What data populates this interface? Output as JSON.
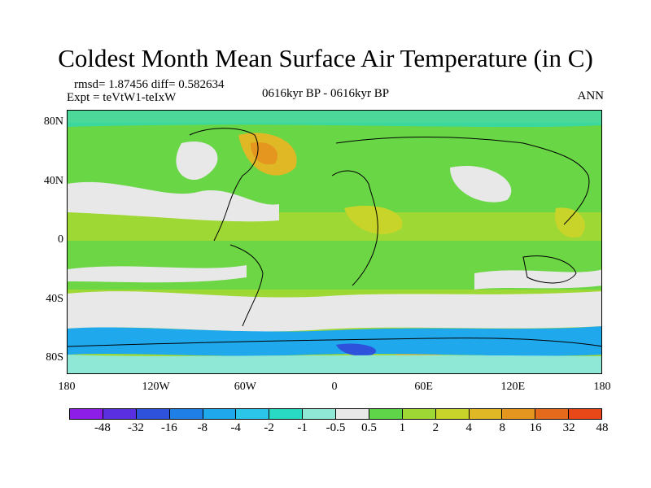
{
  "title": "Coldest Month Mean Surface Air Temperature (in C)",
  "stats": "rmsd= 1.87456 diff= 0.582634",
  "experiment": "Expt = teVtW1-teIxW",
  "period": "0616kyr BP - 0616kyr BP",
  "season": "ANN",
  "lat_labels": [
    "80N",
    "40N",
    "0",
    "40S",
    "80S"
  ],
  "lat_values": [
    80,
    40,
    0,
    -40,
    -80
  ],
  "lon_labels": [
    "180",
    "120W",
    "60W",
    "0",
    "60E",
    "120E",
    "180"
  ],
  "lon_values": [
    -180,
    -120,
    -60,
    0,
    60,
    120,
    180
  ],
  "colorbar": {
    "colors": [
      "#8c1ee8",
      "#5a2fe0",
      "#2e52dc",
      "#1f7fe6",
      "#1fa8ec",
      "#2bc5ea",
      "#28d9c3",
      "#8fe8d6",
      "#e8e8e8",
      "#5fd64a",
      "#9ed834",
      "#c8d42a",
      "#e0b826",
      "#e4961f",
      "#e66a1c",
      "#e84818"
    ],
    "labels": [
      "-48",
      "-32",
      "-16",
      "-8",
      "-4",
      "-2",
      "-1",
      "-0.5",
      "0.5",
      "1",
      "2",
      "4",
      "8",
      "16",
      "32",
      "48"
    ]
  }
}
